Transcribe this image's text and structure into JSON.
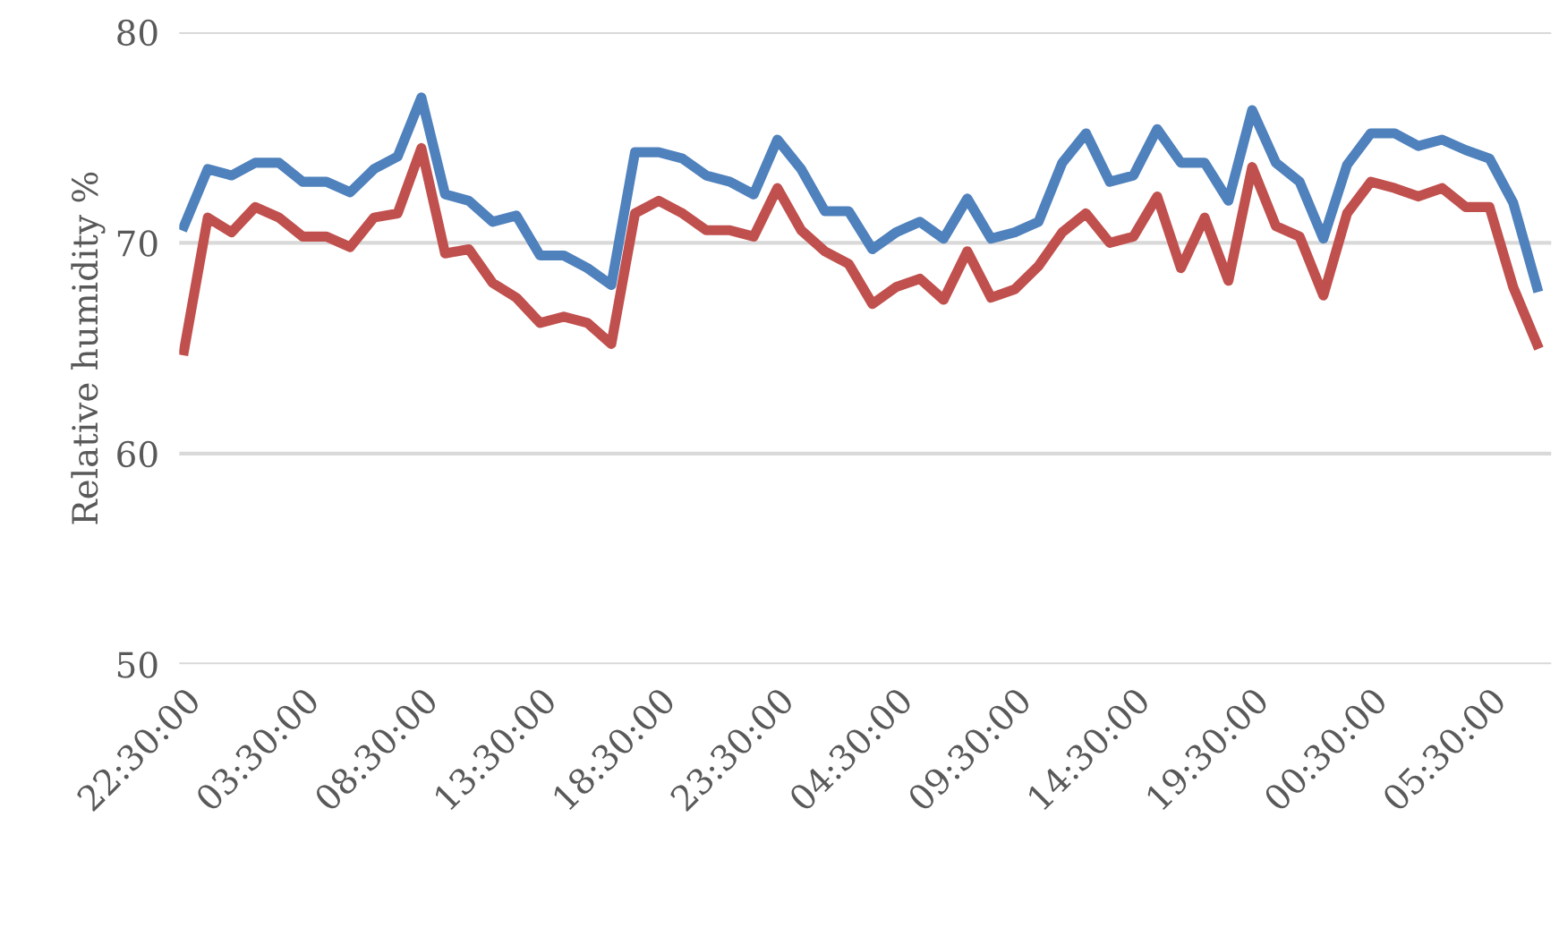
{
  "chart_data": {
    "type": "line",
    "ylabel": "Relative humidity %",
    "categories": [
      "22:30:00",
      null,
      null,
      null,
      null,
      "03:30:00",
      null,
      null,
      null,
      null,
      "08:30:00",
      null,
      null,
      null,
      null,
      "13:30:00",
      null,
      null,
      null,
      null,
      "18:30:00",
      null,
      null,
      null,
      null,
      "23:30:00",
      null,
      null,
      null,
      null,
      "04:30:00",
      null,
      null,
      null,
      null,
      "09:30:00",
      null,
      null,
      null,
      null,
      "14:30:00",
      null,
      null,
      null,
      null,
      "19:30:00",
      null,
      null,
      null,
      null,
      "00:30:00",
      null,
      null,
      null,
      null,
      "05:30:00",
      null,
      null
    ],
    "series": [
      {
        "color": "#4f81bd",
        "values": [
          70.8,
          73.5,
          73.2,
          73.8,
          73.8,
          72.9,
          72.9,
          72.4,
          73.5,
          74.1,
          76.9,
          72.3,
          72.0,
          71.0,
          71.3,
          69.4,
          69.4,
          68.8,
          68.0,
          74.3,
          74.3,
          74.0,
          73.2,
          72.9,
          72.3,
          74.9,
          73.5,
          71.5,
          71.5,
          69.7,
          70.5,
          71.0,
          70.2,
          72.1,
          70.2,
          70.5,
          71.0,
          73.8,
          75.2,
          72.9,
          73.2,
          75.4,
          73.8,
          73.8,
          72.0,
          76.3,
          73.8,
          72.9,
          70.2,
          73.7,
          75.2,
          75.2,
          74.6,
          74.9,
          74.4,
          74.0,
          71.9,
          67.9
        ]
      },
      {
        "color": "#c0504d",
        "values": [
          64.9,
          71.2,
          70.5,
          71.7,
          71.2,
          70.3,
          70.3,
          69.8,
          71.2,
          71.4,
          74.5,
          69.5,
          69.7,
          68.1,
          67.4,
          66.2,
          66.5,
          66.2,
          65.2,
          71.4,
          72.0,
          71.4,
          70.6,
          70.6,
          70.3,
          72.6,
          70.6,
          69.6,
          69.0,
          67.1,
          67.9,
          68.3,
          67.3,
          69.6,
          67.4,
          67.8,
          68.9,
          70.5,
          71.4,
          70.0,
          70.3,
          72.2,
          68.8,
          71.2,
          68.2,
          73.6,
          70.8,
          70.3,
          67.5,
          71.4,
          72.9,
          72.6,
          72.2,
          72.6,
          71.7,
          71.7,
          67.9,
          65.2
        ]
      }
    ],
    "ylim": [
      50,
      80
    ],
    "yticks": [
      50,
      60,
      70,
      80
    ],
    "grid": "y",
    "marker": "none",
    "line_style": "solid"
  }
}
